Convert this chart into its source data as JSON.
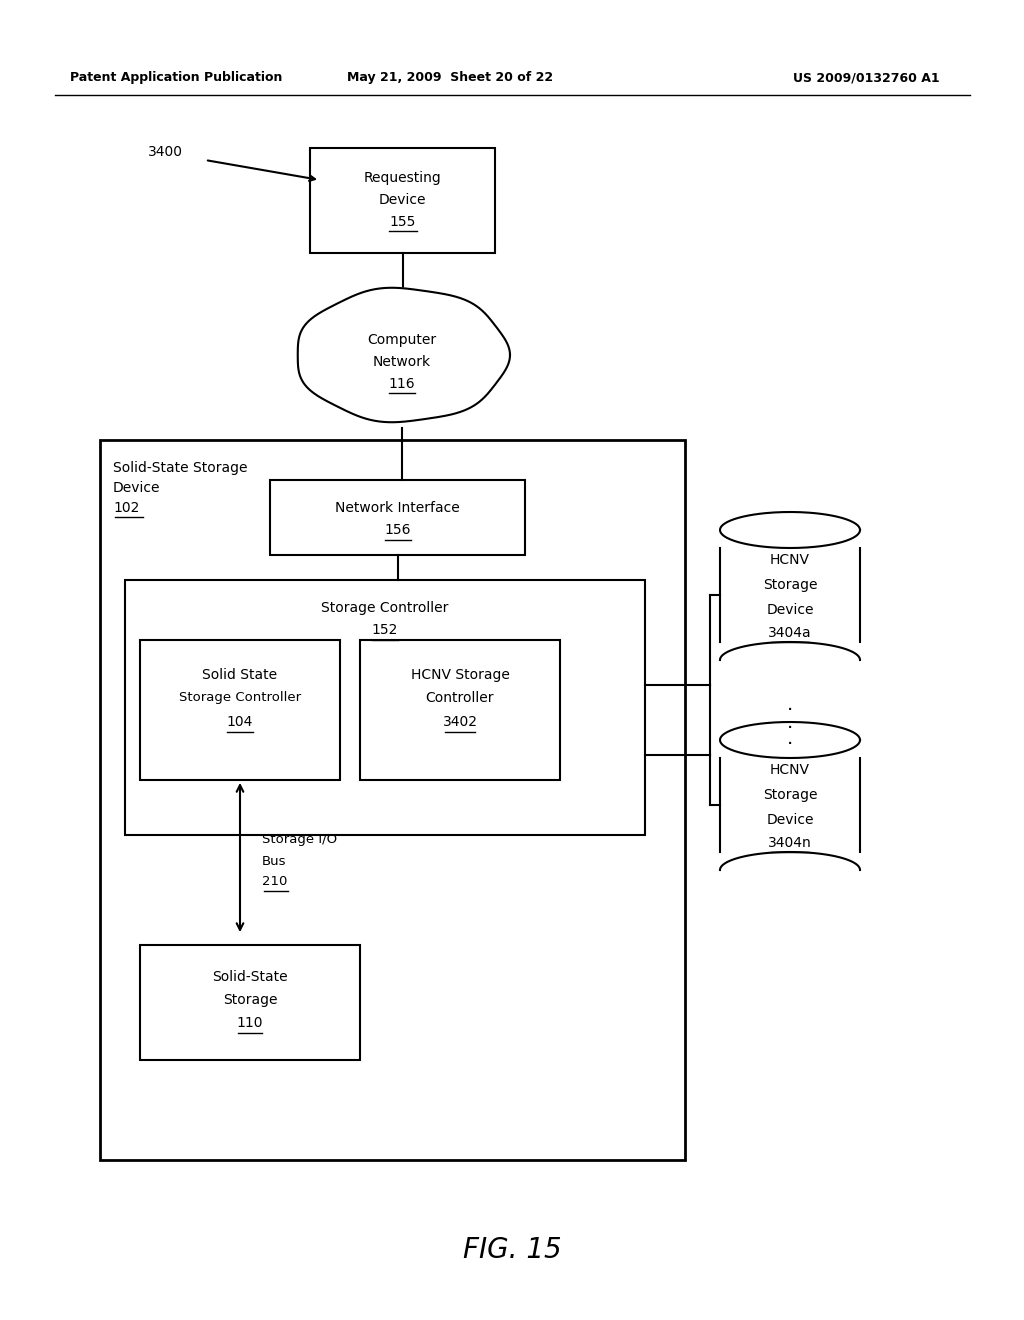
{
  "bg_color": "#ffffff",
  "header_left": "Patent Application Publication",
  "header_mid": "May 21, 2009  Sheet 20 of 22",
  "header_right": "US 2009/0132760 A1",
  "fig_label": "FIG. 15"
}
